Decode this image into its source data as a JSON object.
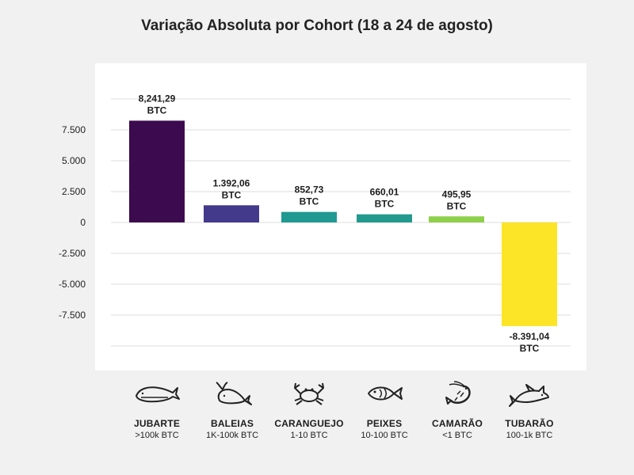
{
  "title": "Variação Absoluta por Cohort (18 a 24 de agosto)",
  "chart_data": {
    "type": "bar",
    "title": "Variação Absoluta por Cohort (18 a 24 de agosto)",
    "categories": [
      "JUBARTE",
      "BALEIAS",
      "CARANGUEJO",
      "PEIXES",
      "CAMARÃO",
      "TUBARÃO"
    ],
    "subcategories": [
      ">100k BTC",
      "1K-100k BTC",
      "1-10 BTC",
      "10-100 BTC",
      "<1 BTC",
      "100-1k BTC"
    ],
    "values": [
      8241.29,
      1392.06,
      852.73,
      660.01,
      495.95,
      -8391.04
    ],
    "value_labels": [
      "8,241,29",
      "1.392,06",
      "852,73",
      "660,01",
      "495,95",
      "-8.391,04"
    ],
    "unit_label": "BTC",
    "colors": [
      "#3c0a4e",
      "#433a8c",
      "#1f9991",
      "#239a8e",
      "#8fd04b",
      "#fbe526"
    ],
    "ylim": [
      -10000,
      10000
    ],
    "yticks": [
      -7500,
      -5000,
      -2500,
      0,
      2500,
      5000,
      7500
    ],
    "ytick_labels": [
      "-7.500",
      "-5.000",
      "-2.500",
      "0",
      "2.500",
      "5.000",
      "7.500"
    ],
    "grid": true,
    "legend": "none"
  },
  "cohorts": [
    {
      "name": "JUBARTE",
      "range": ">100k BTC",
      "icon": "humpback-whale-icon"
    },
    {
      "name": "BALEIAS",
      "range": "1K-100k BTC",
      "icon": "whale-icon"
    },
    {
      "name": "CARANGUEJO",
      "range": "1-10 BTC",
      "icon": "crab-icon"
    },
    {
      "name": "PEIXES",
      "range": "10-100 BTC",
      "icon": "fish-icon"
    },
    {
      "name": "CAMARÃO",
      "range": "<1 BTC",
      "icon": "shrimp-icon"
    },
    {
      "name": "TUBARÃO",
      "range": "100-1k BTC",
      "icon": "shark-icon"
    }
  ]
}
